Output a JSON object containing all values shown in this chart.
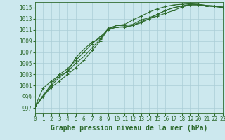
{
  "title": "Graphe pression niveau de la mer (hPa)",
  "background_color": "#cce8ee",
  "grid_color": "#aacdd6",
  "line_color": "#2d6a2d",
  "xlim": [
    0,
    23
  ],
  "ylim": [
    996,
    1016
  ],
  "yticks": [
    997,
    999,
    1001,
    1003,
    1005,
    1007,
    1009,
    1011,
    1013,
    1015
  ],
  "xticks": [
    0,
    1,
    2,
    3,
    4,
    5,
    6,
    7,
    8,
    9,
    10,
    11,
    12,
    13,
    14,
    15,
    16,
    17,
    18,
    19,
    20,
    21,
    22,
    23
  ],
  "series": [
    [
      997.2,
      999.0,
      1000.7,
      1001.8,
      1003.0,
      1004.2,
      1005.5,
      1007.3,
      1009.0,
      1011.2,
      1011.5,
      1011.5,
      1011.8,
      1012.5,
      1013.0,
      1013.5,
      1014.0,
      1014.5,
      1015.1,
      1015.5,
      1015.5,
      1015.3,
      1015.2,
      1015.1
    ],
    [
      997.2,
      999.0,
      1001.0,
      1002.5,
      1003.5,
      1005.0,
      1006.2,
      1007.8,
      1009.3,
      1011.2,
      1011.8,
      1011.8,
      1012.0,
      1012.8,
      1013.2,
      1013.8,
      1014.5,
      1015.0,
      1015.3,
      1015.6,
      1015.6,
      1015.4,
      1015.3,
      1015.1
    ],
    [
      997.2,
      1000.5,
      1001.8,
      1002.8,
      1003.5,
      1006.0,
      1007.5,
      1008.8,
      1009.5,
      1011.3,
      1011.8,
      1012.0,
      1012.8,
      1013.5,
      1014.2,
      1014.8,
      1015.2,
      1015.5,
      1015.6,
      1015.7,
      1015.6,
      1015.4,
      1015.3,
      1015.1
    ],
    [
      997.2,
      999.2,
      1001.2,
      1003.0,
      1004.0,
      1005.5,
      1007.0,
      1008.5,
      1009.8,
      1011.0,
      1011.5,
      1011.6,
      1011.8,
      1012.3,
      1013.0,
      1013.8,
      1014.5,
      1015.0,
      1015.3,
      1015.5,
      1015.5,
      1015.3,
      1015.2,
      1015.0
    ]
  ],
  "marker": "+",
  "markersize": 3.5,
  "linewidth": 0.8,
  "title_fontsize": 7.0,
  "tick_fontsize": 5.5,
  "xlabel_bg": "#ffffff"
}
